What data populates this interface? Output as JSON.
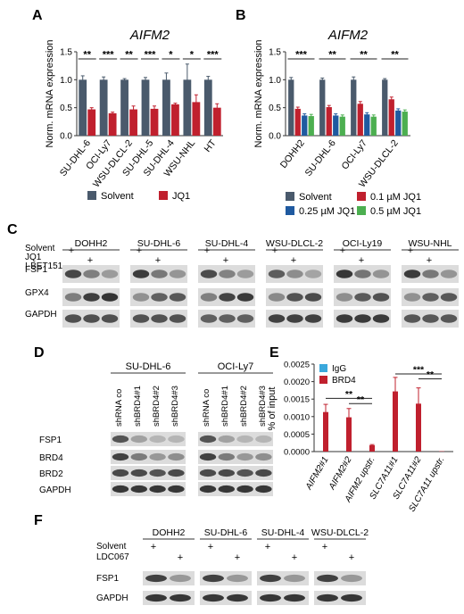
{
  "panels": {
    "A": {
      "letter": "A",
      "chart_data": {
        "type": "bar",
        "title": "AIFM2",
        "ylabel": "Norm. mRNA expression",
        "ylim": [
          0,
          1.5
        ],
        "yticks": [
          "0.0",
          "0.5",
          "1.0",
          "1.5"
        ],
        "categories": [
          "SU-DHL-6",
          "OCI-Ly7",
          "WSU-DLCL-2",
          "SU-DHL-5",
          "SU-DHL-4",
          "WSU-NHL",
          "HT"
        ],
        "series": [
          {
            "name": "Solvent",
            "color": "#4a5a6c",
            "values": [
              1.0,
              1.0,
              1.0,
              1.0,
              1.0,
              1.0,
              1.0
            ],
            "errors": [
              0.07,
              0.05,
              0.02,
              0.04,
              0.12,
              0.28,
              0.06
            ]
          },
          {
            "name": "JQ1",
            "color": "#c0202e",
            "values": [
              0.47,
              0.4,
              0.47,
              0.48,
              0.56,
              0.6,
              0.5
            ],
            "errors": [
              0.03,
              0.02,
              0.06,
              0.05,
              0.02,
              0.13,
              0.07
            ]
          }
        ],
        "significance": [
          "**",
          "***",
          "**",
          "***",
          "*",
          "*",
          "***"
        ]
      }
    },
    "B": {
      "letter": "B",
      "chart_data": {
        "type": "bar",
        "title": "AIFM2",
        "ylabel": "Norm. mRNA expression",
        "ylim": [
          0,
          1.5
        ],
        "yticks": [
          "0.0",
          "0.5",
          "1.0",
          "1.5"
        ],
        "categories": [
          "DOHH2",
          "SU-DHL-6",
          "OCI-Ly7",
          "WSU-DLCL-2"
        ],
        "series": [
          {
            "name": "Solvent",
            "color": "#4a5a6c",
            "values": [
              1.0,
              1.0,
              1.0,
              1.0
            ],
            "errors": [
              0.04,
              0.03,
              0.05,
              0.02
            ]
          },
          {
            "name": "0.1 µM JQ1",
            "color": "#c0202e",
            "values": [
              0.48,
              0.51,
              0.57,
              0.65
            ],
            "errors": [
              0.03,
              0.03,
              0.04,
              0.04
            ]
          },
          {
            "name": "0.25 µM JQ1",
            "color": "#1f5aa0",
            "values": [
              0.36,
              0.36,
              0.38,
              0.45
            ],
            "errors": [
              0.03,
              0.03,
              0.03,
              0.03
            ]
          },
          {
            "name": "0.5 µM JQ1",
            "color": "#4caf50",
            "values": [
              0.35,
              0.34,
              0.34,
              0.43
            ],
            "errors": [
              0.03,
              0.03,
              0.03,
              0.03
            ]
          }
        ],
        "significance": [
          "***",
          "**",
          "**",
          "**"
        ],
        "legend_order": [
          "Solvent",
          "0.1 µM JQ1",
          "0.25 µM JQ1",
          "0.5 µM JQ1"
        ]
      }
    },
    "C": {
      "letter": "C",
      "treatments": [
        "Solvent",
        "JQ1",
        "I-BET151"
      ],
      "cell_lines": [
        "DOHH2",
        "SU-DHL-6",
        "SU-DHL-4",
        "WSU-DLCL-2",
        "OCI-Ly19",
        "WSU-NHL"
      ],
      "proteins": [
        "FSP1",
        "GPX4",
        "GAPDH"
      ],
      "plus": "+"
    },
    "D": {
      "letter": "D",
      "cell_lines": [
        "SU-DHL-6",
        "OCI-Ly7"
      ],
      "lanes": [
        "shRNA co",
        "shBRD4#1",
        "shBRD4#2",
        "shBRD4#3"
      ],
      "proteins": [
        "FSP1",
        "BRD4",
        "BRD2",
        "GAPDH"
      ]
    },
    "E": {
      "letter": "E",
      "chart_data": {
        "type": "bar",
        "ylabel": "% of input",
        "ylim": [
          0,
          0.0025
        ],
        "yticks": [
          "0.0000",
          "0.0005",
          "0.0010",
          "0.0015",
          "0.0020",
          "0.0025"
        ],
        "categories": [
          "AIFM2#1",
          "AIFM2#2",
          "AIFM2 upstr.",
          "SLC7A11#1",
          "SLC7A11#2",
          "SLC7A11 upstr."
        ],
        "series": [
          {
            "name": "IgG",
            "color": "#3aa8dc",
            "values": [
              0,
              0,
              0,
              0,
              0,
              0
            ]
          },
          {
            "name": "BRD4",
            "color": "#c0202e",
            "values": [
              0.00113,
              0.00098,
              0.00018,
              0.00172,
              0.00137,
              1e-05
            ],
            "errors": [
              0.00022,
              0.00025,
              2e-05,
              0.0004,
              0.00045,
              0.0
            ]
          }
        ],
        "significance": [
          {
            "label": "**",
            "from": "AIFM2#1",
            "to": "AIFM2 upstr."
          },
          {
            "label": "**",
            "from": "AIFM2#2",
            "to": "AIFM2 upstr."
          },
          {
            "label": "***",
            "from": "SLC7A11#1",
            "to": "SLC7A11 upstr."
          },
          {
            "label": "**",
            "from": "SLC7A11#2",
            "to": "SLC7A11 upstr."
          }
        ]
      }
    },
    "F": {
      "letter": "F",
      "treatments": [
        "Solvent",
        "LDC067"
      ],
      "cell_lines": [
        "DOHH2",
        "SU-DHL-6",
        "SU-DHL-4",
        "WSU-DLCL-2"
      ],
      "proteins": [
        "FSP1",
        "GAPDH"
      ],
      "plus": "+"
    }
  }
}
